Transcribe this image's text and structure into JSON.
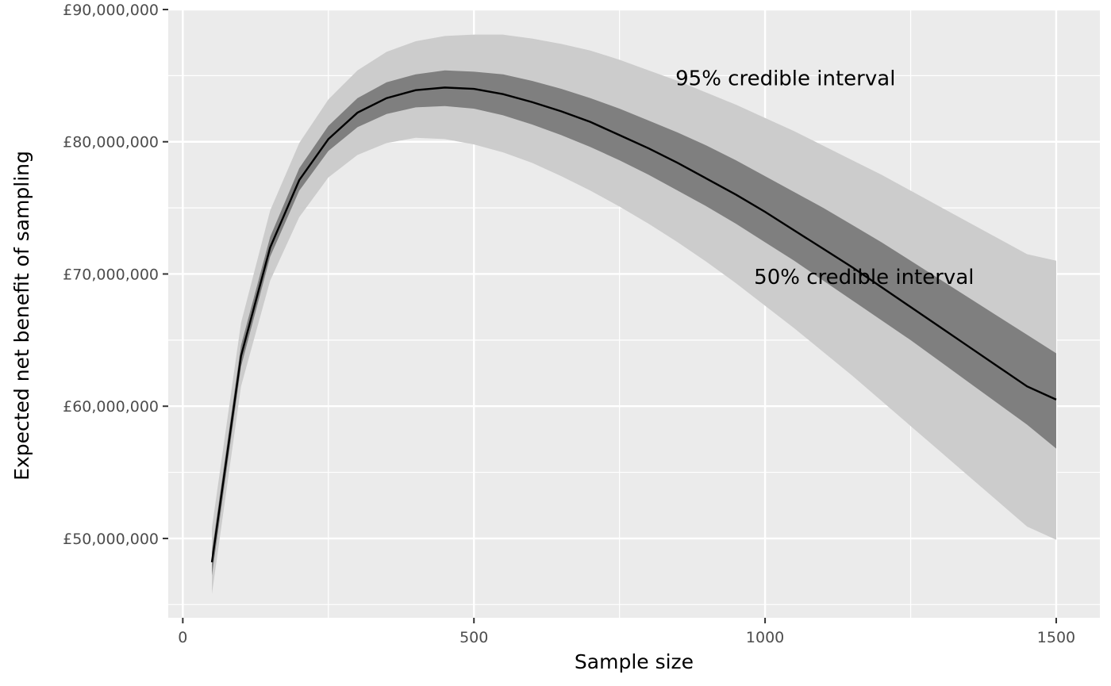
{
  "chart_data": {
    "type": "line",
    "xlabel": "Sample size",
    "ylabel": "Expected net benefit of sampling",
    "xlim": [
      -25,
      1575
    ],
    "ylim": [
      44000000,
      90000000
    ],
    "x_ticks": [
      0,
      500,
      1000,
      1500
    ],
    "x_tick_labels": [
      "0",
      "500",
      "1000",
      "1500"
    ],
    "x_minor_ticks": [
      250,
      750,
      1250
    ],
    "y_ticks": [
      50000000,
      60000000,
      70000000,
      80000000,
      90000000
    ],
    "y_tick_labels": [
      "£50,000,000",
      "£60,000,000",
      "£70,000,000",
      "£80,000,000",
      "£90,000,000"
    ],
    "y_minor_ticks": [
      45000000,
      55000000,
      65000000,
      75000000,
      85000000
    ],
    "grid": true,
    "colors": {
      "panel": "#ebebeb",
      "grid": "#ffffff",
      "band_95": "#cccccc",
      "band_50": "#7f7f7f",
      "line": "#000000"
    },
    "x": [
      50,
      100,
      150,
      200,
      250,
      300,
      350,
      400,
      450,
      500,
      550,
      600,
      650,
      700,
      750,
      800,
      850,
      900,
      950,
      1000,
      1050,
      1100,
      1150,
      1200,
      1250,
      1300,
      1350,
      1400,
      1450,
      1500
    ],
    "series": [
      {
        "name": "Expected net benefit of sampling",
        "values": [
          48200000,
          63800000,
          72000000,
          77100000,
          80200000,
          82200000,
          83300000,
          83900000,
          84100000,
          84000000,
          83600000,
          83000000,
          82300000,
          81500000,
          80500000,
          79500000,
          78400000,
          77200000,
          76000000,
          74700000,
          73300000,
          71900000,
          70500000,
          69000000,
          67500000,
          66000000,
          64500000,
          63000000,
          61500000,
          60500000
        ]
      }
    ],
    "bands": [
      {
        "name": "95% credible interval",
        "lower": [
          45800000,
          61500000,
          69500000,
          74300000,
          77300000,
          79000000,
          79900000,
          80300000,
          80200000,
          79800000,
          79200000,
          78400000,
          77400000,
          76300000,
          75100000,
          73800000,
          72400000,
          70900000,
          69300000,
          67600000,
          65900000,
          64100000,
          62300000,
          60400000,
          58500000,
          56600000,
          54700000,
          52800000,
          50900000,
          49900000
        ],
        "upper": [
          50800000,
          66300000,
          74800000,
          79900000,
          83200000,
          85400000,
          86800000,
          87600000,
          88000000,
          88100000,
          88100000,
          87800000,
          87400000,
          86900000,
          86200000,
          85400000,
          84600000,
          83700000,
          82800000,
          81800000,
          80800000,
          79700000,
          78600000,
          77500000,
          76300000,
          75100000,
          73900000,
          72700000,
          71500000,
          71000000
        ]
      },
      {
        "name": "50% credible interval",
        "lower": [
          47200000,
          63000000,
          71300000,
          76300000,
          79300000,
          81100000,
          82100000,
          82600000,
          82700000,
          82500000,
          82000000,
          81300000,
          80500000,
          79600000,
          78600000,
          77500000,
          76300000,
          75100000,
          73800000,
          72400000,
          71000000,
          69500000,
          68000000,
          66500000,
          65000000,
          63400000,
          61800000,
          60200000,
          58600000,
          56800000
        ],
        "upper": [
          49000000,
          64600000,
          72800000,
          78000000,
          81200000,
          83300000,
          84500000,
          85100000,
          85400000,
          85300000,
          85100000,
          84600000,
          84000000,
          83300000,
          82500000,
          81600000,
          80700000,
          79700000,
          78600000,
          77400000,
          76200000,
          75000000,
          73700000,
          72400000,
          71000000,
          69600000,
          68200000,
          66800000,
          65400000,
          64000000
        ]
      }
    ],
    "annotations": [
      {
        "text": "95% credible interval",
        "x": 1035,
        "y": 84800000
      },
      {
        "text": "50% credible interval",
        "x": 1170,
        "y": 69800000
      }
    ]
  }
}
